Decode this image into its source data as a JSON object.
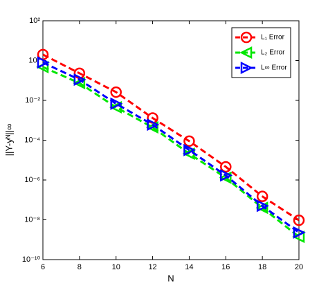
{
  "chart_data": {
    "type": "line",
    "x_label": "N",
    "y_label": "||Y-yᴺ||∞",
    "x": [
      6,
      8,
      10,
      12,
      14,
      16,
      18,
      20
    ],
    "xlim": [
      6,
      20
    ],
    "xticks": [
      6,
      8,
      10,
      12,
      14,
      16,
      18,
      20
    ],
    "ylim": [
      1e-10,
      100
    ],
    "y_scale": "log",
    "yticks": [
      {
        "value": 1e-10,
        "label": "10⁻¹⁰"
      },
      {
        "value": 1e-08,
        "label": "10⁻⁸"
      },
      {
        "value": 1e-06,
        "label": "10⁻⁶"
      },
      {
        "value": 0.0001,
        "label": "10⁻⁴"
      },
      {
        "value": 0.01,
        "label": "10⁻²"
      },
      {
        "value": 1,
        "label": "10⁰"
      },
      {
        "value": 100,
        "label": "10²"
      }
    ],
    "legend": "upper right",
    "series": [
      {
        "name": "L₁ Error",
        "color": "#ff0000",
        "marker": "circle",
        "values": [
          2,
          0.23,
          0.026,
          0.0013,
          9e-05,
          4.6e-06,
          1.5e-07,
          9.5e-09
        ]
      },
      {
        "name": "L₂ Error",
        "color": "#00e600",
        "marker": "triangle-left",
        "values": [
          0.47,
          0.074,
          0.0045,
          0.00044,
          2.1e-05,
          1.3e-06,
          4e-08,
          1.4e-09
        ]
      },
      {
        "name": "L∞ Error",
        "color": "#0000ff",
        "marker": "triangle-right",
        "values": [
          0.8,
          0.11,
          0.0068,
          0.0006,
          3.2e-05,
          1.7e-06,
          5e-08,
          2.3e-09
        ]
      }
    ]
  }
}
